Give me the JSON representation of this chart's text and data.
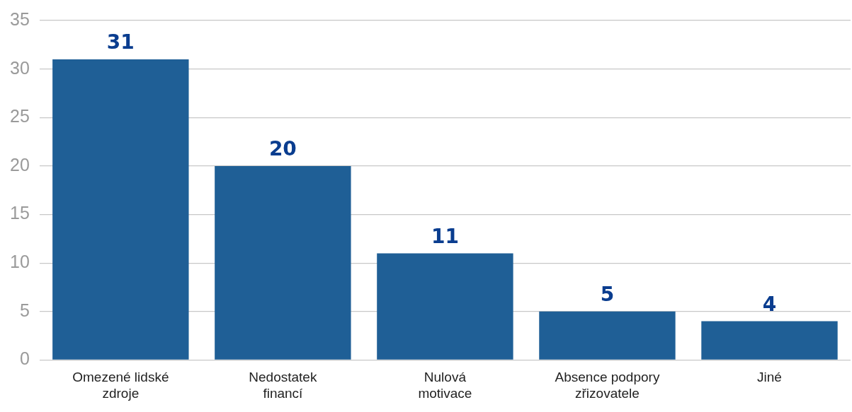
{
  "chart_data": {
    "type": "bar",
    "categories": [
      "Omezené lidské zdroje",
      "Nedostatek financí",
      "Nulová motivace",
      "Absence podpory zřizovatele",
      "Jiné"
    ],
    "values": [
      31,
      20,
      11,
      5,
      4
    ],
    "color": "#1f5f96",
    "ylim": [
      0,
      35
    ],
    "yticks": [
      0,
      5,
      10,
      15,
      20,
      25,
      30,
      35
    ],
    "grid": "y",
    "data_labels": true
  }
}
